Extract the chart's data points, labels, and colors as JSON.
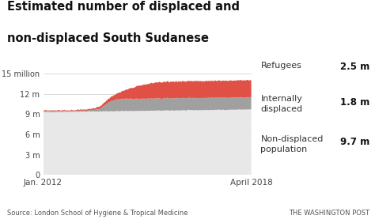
{
  "title_line1": "Estimated number of displaced and",
  "title_line2": "non-displaced South Sudanese",
  "source": "Source: London School of Hygiene & Tropical Medicine",
  "watermark": "THE WASHINGTON POST",
  "x_start_year": 2012.0,
  "x_end_year": 2018.33,
  "yticks": [
    0,
    3000000,
    6000000,
    9000000,
    12000000,
    15000000
  ],
  "ytick_labels": [
    "0",
    "3 m",
    "6 m",
    "9 m",
    "12 m",
    "15 million"
  ],
  "xtick_labels": [
    "Jan. 2012",
    "April 2018"
  ],
  "non_displaced_color": "#e8e8e8",
  "internally_displaced_color": "#a0a0a0",
  "refugees_color": "#e05045",
  "background_color": "#ffffff",
  "legend_refugees_label": "Refugees",
  "legend_refugees_value": "2.5 m",
  "legend_idp_label": "Internally\ndisplaced",
  "legend_idp_value": "1.8 m",
  "legend_nd_label": "Non-displaced\npopulation",
  "legend_nd_value": "9.7 m"
}
